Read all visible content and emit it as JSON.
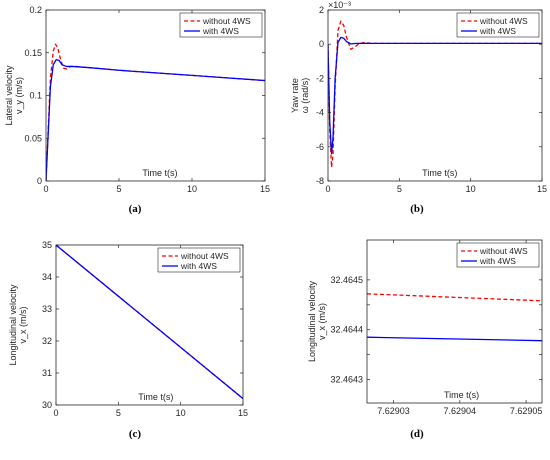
{
  "chart_data": [
    {
      "type": "line",
      "caption": "(a)",
      "xlabel": "Time t(s)",
      "ylabel": [
        "Lateral velocity",
        "v_y (m/s)"
      ],
      "xlim": [
        0,
        15
      ],
      "ylim": [
        0,
        0.2
      ],
      "xticks": [
        0,
        5,
        10,
        15
      ],
      "xtick_labels": [
        "0",
        "5",
        "10",
        "15"
      ],
      "yticks": [
        0,
        0.05,
        0.1,
        0.15,
        0.2
      ],
      "ytick_labels": [
        "0",
        "0.05",
        "0.1",
        "0.15",
        "0.2"
      ],
      "exponent": "",
      "legend": "top-right",
      "grid": false,
      "series": [
        {
          "name": "without 4WS",
          "color": "#ff0000",
          "dash": "dashed",
          "x": [
            0,
            0.3,
            0.5,
            0.65,
            0.8,
            1.0,
            1.2,
            1.4,
            1.7,
            2.0,
            3,
            5,
            7.5,
            10,
            12.5,
            15
          ],
          "y": [
            0,
            0.12,
            0.152,
            0.16,
            0.156,
            0.142,
            0.132,
            0.131,
            0.134,
            0.134,
            0.1325,
            0.1295,
            0.1265,
            0.1235,
            0.1205,
            0.1175
          ]
        },
        {
          "name": "with 4WS",
          "color": "#0000ff",
          "dash": "solid",
          "x": [
            0,
            0.3,
            0.5,
            0.7,
            0.9,
            1.1,
            1.4,
            1.8,
            3,
            5,
            7.5,
            10,
            12.5,
            15
          ],
          "y": [
            0,
            0.11,
            0.136,
            0.142,
            0.141,
            0.136,
            0.134,
            0.134,
            0.1325,
            0.1295,
            0.1265,
            0.1235,
            0.1205,
            0.1175
          ]
        }
      ]
    },
    {
      "type": "line",
      "caption": "(b)",
      "xlabel": "Time t(s)",
      "ylabel": [
        "Yaw rate",
        "ω (rad/s)"
      ],
      "xlim": [
        0,
        15
      ],
      "ylim": [
        -8,
        2
      ],
      "xticks": [
        0,
        5,
        10,
        15
      ],
      "xtick_labels": [
        "0",
        "5",
        "10",
        "15"
      ],
      "yticks": [
        -8,
        -6,
        -4,
        -2,
        0,
        2
      ],
      "ytick_labels": [
        "-8",
        "-6",
        "-4",
        "-2",
        "0",
        "2"
      ],
      "exponent": "×10⁻³",
      "legend": "top-right",
      "grid": false,
      "series": [
        {
          "name": "without 4WS",
          "color": "#ff0000",
          "dash": "dashed",
          "x": [
            0,
            0.12,
            0.25,
            0.35,
            0.5,
            0.7,
            0.9,
            1.1,
            1.3,
            1.6,
            1.9,
            2.2,
            2.6,
            3.0,
            5,
            10,
            15
          ],
          "y": [
            0,
            -5.0,
            -7.2,
            -6.5,
            -2.5,
            0.8,
            1.35,
            1.1,
            0.4,
            -0.3,
            -0.15,
            0.05,
            0.1,
            0.05,
            0.05,
            0.05,
            0.05
          ]
        },
        {
          "name": "with 4WS",
          "color": "#0000ff",
          "dash": "solid",
          "x": [
            0,
            0.12,
            0.25,
            0.35,
            0.5,
            0.7,
            0.9,
            1.1,
            1.3,
            1.6,
            2.0,
            3.0,
            5,
            10,
            15
          ],
          "y": [
            0,
            -4.5,
            -6.4,
            -5.5,
            -2.0,
            0.1,
            0.4,
            0.35,
            0.15,
            0.02,
            0.05,
            0.05,
            0.05,
            0.05,
            0.05
          ]
        }
      ]
    },
    {
      "type": "line",
      "caption": "(c)",
      "xlabel": "Time t(s)",
      "ylabel": [
        "Longitudinal velocity",
        "v_x (m/s)"
      ],
      "xlim": [
        0,
        15
      ],
      "ylim": [
        30,
        35
      ],
      "xticks": [
        0,
        5,
        10,
        15
      ],
      "xtick_labels": [
        "0",
        "5",
        "10",
        "15"
      ],
      "yticks": [
        30,
        31,
        32,
        33,
        34,
        35
      ],
      "ytick_labels": [
        "30",
        "31",
        "32",
        "33",
        "34",
        "35"
      ],
      "exponent": "",
      "legend": "top-right",
      "grid": false,
      "series": [
        {
          "name": "without 4WS",
          "color": "#ff0000",
          "dash": "dashed",
          "x": [
            0,
            15
          ],
          "y": [
            35,
            30.2
          ]
        },
        {
          "name": "with 4WS",
          "color": "#0000ff",
          "dash": "solid",
          "x": [
            0,
            15
          ],
          "y": [
            35,
            30.2
          ]
        }
      ]
    },
    {
      "type": "line",
      "caption": "(d)",
      "xlabel": "Time t(s)",
      "ylabel": [
        "Longitudinal velocity",
        "v_x (m/s)"
      ],
      "xlim": [
        7.629026,
        7.6290524
      ],
      "ylim": [
        32.464253,
        32.46458
      ],
      "xticks": [
        7.62903,
        7.62904,
        7.62905
      ],
      "xtick_labels": [
        "7.62903",
        "7.62904",
        "7.62905"
      ],
      "yticks": [
        32.4643,
        32.46435,
        32.4644,
        32.46445,
        32.4645
      ],
      "ytick_labels": [
        "32.4643",
        "",
        "32.4644",
        "",
        "32.4645"
      ],
      "exponent": "",
      "legend": "top-right",
      "grid": false,
      "series": [
        {
          "name": "without 4WS",
          "color": "#ff0000",
          "dash": "dashed",
          "x": [
            7.629026,
            7.6290524
          ],
          "y": [
            32.464472,
            32.464458
          ]
        },
        {
          "name": "with 4WS",
          "color": "#0000ff",
          "dash": "solid",
          "x": [
            7.629026,
            7.6290524
          ],
          "y": [
            32.464385,
            32.464378
          ]
        }
      ]
    }
  ]
}
